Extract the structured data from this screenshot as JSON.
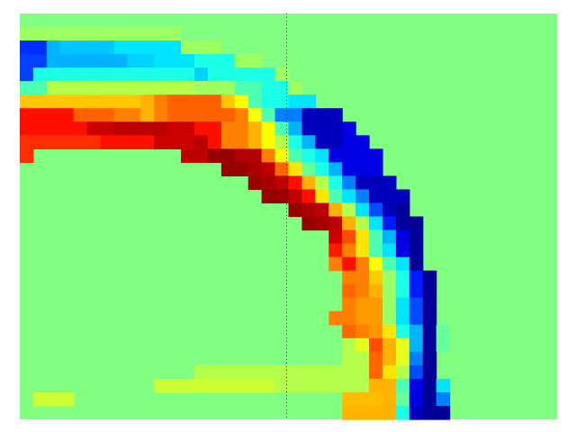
{
  "chart_data": {
    "type": "heatmap",
    "title": "",
    "xlabel": "",
    "ylabel": "",
    "colormap": "jet",
    "value_range": [
      -1,
      1
    ],
    "background_value": 0,
    "grid": false,
    "legend": "none",
    "divider": {
      "orientation": "vertical",
      "column": 20,
      "style": "dotted"
    },
    "grid_size": {
      "rows": 30,
      "cols": 40
    },
    "rows": [
      [
        0,
        0,
        0,
        0,
        0,
        0,
        0,
        0,
        0,
        0,
        0,
        0,
        0,
        0,
        0,
        0,
        0,
        0,
        0,
        0,
        0,
        0,
        0,
        0,
        0,
        0,
        0,
        0,
        0,
        0,
        0,
        0,
        0,
        0,
        0,
        0,
        0,
        0,
        0,
        0
      ],
      [
        0.06,
        0.06,
        0.06,
        0.06,
        0.06,
        0.06,
        0.06,
        0.06,
        0.06,
        0.06,
        0.06,
        0.06,
        0,
        0,
        0,
        0,
        0,
        0,
        0,
        0,
        0,
        0,
        0,
        0,
        0,
        0,
        0,
        0,
        0,
        0,
        0,
        0,
        0,
        0,
        0,
        0,
        0,
        0,
        0,
        0
      ],
      [
        -0.66,
        -0.66,
        -0.4,
        -0.36,
        -0.36,
        -0.36,
        -0.36,
        -0.3,
        -0.3,
        -0.3,
        -0.3,
        -0.3,
        0.06,
        0.06,
        0.06,
        0,
        0,
        0,
        0,
        0,
        0,
        0,
        0,
        0,
        0,
        0,
        0,
        0,
        0,
        0,
        0,
        0,
        0,
        0,
        0,
        0,
        0,
        0,
        0,
        0
      ],
      [
        -0.62,
        -0.62,
        -0.4,
        -0.4,
        -0.4,
        -0.4,
        -0.4,
        -0.4,
        -0.34,
        -0.34,
        -0.3,
        -0.3,
        -0.3,
        -0.2,
        -0.2,
        -0.2,
        0.06,
        0.06,
        0,
        0,
        0,
        0,
        0,
        0,
        0,
        0,
        0,
        0,
        0,
        0,
        0,
        0,
        0,
        0,
        0,
        0,
        0,
        0,
        0,
        0
      ],
      [
        -0.62,
        -0.2,
        -0.2,
        -0.2,
        -0.2,
        -0.2,
        -0.2,
        -0.2,
        -0.2,
        -0.2,
        -0.2,
        -0.2,
        -0.2,
        -0.34,
        -0.2,
        -0.2,
        -0.2,
        -0.2,
        -0.2,
        0.06,
        0,
        0,
        0,
        0,
        0,
        0,
        0,
        0,
        0,
        0,
        0,
        0,
        0,
        0,
        0,
        0,
        0,
        0,
        0,
        0
      ],
      [
        -0.1,
        -0.1,
        0.1,
        0.1,
        0.1,
        0.1,
        0.1,
        0.1,
        0.1,
        0.1,
        0.1,
        0.1,
        0.1,
        0.06,
        0.06,
        0.06,
        -0.1,
        -0.1,
        -0.2,
        -0.2,
        0.06,
        0,
        0,
        0,
        0,
        0,
        0,
        0,
        0,
        0,
        0,
        0,
        0,
        0,
        0,
        0,
        0,
        0,
        0,
        0
      ],
      [
        0.36,
        0.36,
        0.36,
        0.36,
        0.36,
        0.36,
        0.36,
        0.36,
        0.36,
        0.4,
        0.5,
        0.56,
        0.56,
        0.56,
        0.56,
        0.36,
        0.24,
        -0.1,
        -0.2,
        -0.2,
        -0.3,
        -0.3,
        0,
        0,
        0,
        0,
        0,
        0,
        0,
        0,
        0,
        0,
        0,
        0,
        0,
        0,
        0,
        0,
        0,
        0
      ],
      [
        0.72,
        0.72,
        0.72,
        0.72,
        0.56,
        0.56,
        0.56,
        0.5,
        0.5,
        0.4,
        0.5,
        0.56,
        0.56,
        0.56,
        0.56,
        0.56,
        0.5,
        0.24,
        -0.1,
        -0.5,
        -0.5,
        -0.88,
        -0.88,
        -0.88,
        0,
        0,
        0,
        0,
        0,
        0,
        0,
        0,
        0,
        0,
        0,
        0,
        0,
        0,
        0,
        0
      ],
      [
        0.72,
        0.72,
        0.72,
        0.72,
        0.72,
        0.85,
        0.85,
        0.88,
        0.88,
        0.88,
        0.88,
        0.85,
        0.85,
        0.72,
        0.72,
        0.5,
        0.5,
        0.4,
        0.24,
        -0.1,
        -0.4,
        -0.88,
        -0.88,
        -0.88,
        -0.8,
        0,
        0,
        0,
        0,
        0,
        0,
        0,
        0,
        0,
        0,
        0,
        0,
        0,
        0,
        0
      ],
      [
        0.66,
        0.66,
        0.66,
        0.66,
        0.66,
        0.66,
        0.72,
        0.72,
        0.72,
        0.72,
        0.85,
        0.85,
        0.85,
        0.88,
        0.72,
        0.5,
        0.5,
        0.4,
        0.24,
        0.1,
        -0.2,
        -0.4,
        -0.88,
        -0.88,
        -0.8,
        -0.8,
        0,
        0,
        0,
        0,
        0,
        0,
        0,
        0,
        0,
        0,
        0,
        0,
        0,
        0
      ],
      [
        0.66,
        0,
        0,
        0,
        0,
        0,
        0,
        0,
        0,
        0,
        0,
        0,
        0.88,
        0.88,
        0.95,
        0.95,
        0.9,
        0.9,
        0.5,
        0.24,
        -0.1,
        -0.2,
        -0.3,
        -0.8,
        -0.8,
        -0.8,
        -0.8,
        0,
        0,
        0,
        0,
        0,
        0,
        0,
        0,
        0,
        0,
        0,
        0,
        0
      ],
      [
        0,
        0,
        0,
        0,
        0,
        0,
        0,
        0,
        0,
        0,
        0,
        0,
        0,
        0,
        0,
        0.95,
        0.95,
        0.92,
        0.88,
        0.55,
        0.3,
        -0.05,
        -0.2,
        -0.4,
        -0.8,
        -0.8,
        -0.8,
        0,
        0,
        0,
        0,
        0,
        0,
        0,
        0,
        0,
        0,
        0,
        0,
        0
      ],
      [
        0,
        0,
        0,
        0,
        0,
        0,
        0,
        0,
        0,
        0,
        0,
        0,
        0,
        0,
        0,
        0,
        0,
        0.95,
        0.92,
        0.88,
        0.72,
        0.4,
        0.1,
        -0.2,
        -0.5,
        -0.88,
        -0.88,
        -0.88,
        0,
        0,
        0,
        0,
        0,
        0,
        0,
        0,
        0,
        0,
        0,
        0
      ],
      [
        0,
        0,
        0,
        0,
        0,
        0,
        0,
        0,
        0,
        0,
        0,
        0,
        0,
        0,
        0,
        0,
        0,
        0,
        0.95,
        0.95,
        0.88,
        0.72,
        0.3,
        -0.1,
        -0.3,
        -0.5,
        -0.88,
        -0.88,
        -0.88,
        0,
        0,
        0,
        0,
        0,
        0,
        0,
        0,
        0,
        0,
        0
      ],
      [
        0,
        0,
        0,
        0,
        0,
        0,
        0,
        0,
        0,
        0,
        0,
        0,
        0,
        0,
        0,
        0,
        0,
        0,
        0,
        0,
        0.95,
        0.92,
        0.88,
        0.4,
        0.1,
        -0.3,
        -0.6,
        -0.88,
        -0.95,
        0,
        0,
        0,
        0,
        0,
        0,
        0,
        0,
        0,
        0,
        0
      ],
      [
        0,
        0,
        0,
        0,
        0,
        0,
        0,
        0,
        0,
        0,
        0,
        0,
        0,
        0,
        0,
        0,
        0,
        0,
        0,
        0,
        0,
        0.95,
        0.92,
        0.88,
        0.4,
        0.1,
        -0.3,
        -0.7,
        -0.95,
        -0.95,
        0,
        0,
        0,
        0,
        0,
        0,
        0,
        0,
        0,
        0
      ],
      [
        0,
        0,
        0,
        0,
        0,
        0,
        0,
        0,
        0,
        0,
        0,
        0,
        0,
        0,
        0,
        0,
        0,
        0,
        0,
        0,
        0,
        0,
        0,
        0.85,
        0.6,
        0.3,
        -0.1,
        -0.4,
        -0.8,
        -0.95,
        0,
        0,
        0,
        0,
        0,
        0,
        0,
        0,
        0,
        0
      ],
      [
        0,
        0,
        0,
        0,
        0,
        0,
        0,
        0,
        0,
        0,
        0,
        0,
        0,
        0,
        0,
        0,
        0,
        0,
        0,
        0,
        0,
        0,
        0,
        0.7,
        0.5,
        0.3,
        -0.1,
        -0.3,
        -0.8,
        -0.95,
        0,
        0,
        0,
        0,
        0,
        0,
        0,
        0,
        0,
        0
      ],
      [
        0,
        0,
        0,
        0,
        0,
        0,
        0,
        0,
        0,
        0,
        0,
        0,
        0,
        0,
        0,
        0,
        0,
        0,
        0,
        0,
        0,
        0,
        0,
        0.5,
        0.72,
        0.5,
        0.25,
        -0.1,
        -0.3,
        -0.95,
        0,
        0,
        0,
        0,
        0,
        0,
        0,
        0,
        0,
        0
      ],
      [
        0,
        0,
        0,
        0,
        0,
        0,
        0,
        0,
        0,
        0,
        0,
        0,
        0,
        0,
        0,
        0,
        0,
        0,
        0,
        0,
        0,
        0,
        0,
        0,
        0.5,
        0.5,
        0.35,
        0.05,
        -0.2,
        -0.7,
        -0.95,
        0,
        0,
        0,
        0,
        0,
        0,
        0,
        0,
        0
      ],
      [
        0,
        0,
        0,
        0,
        0,
        0,
        0,
        0,
        0,
        0,
        0,
        0,
        0,
        0,
        0,
        0,
        0,
        0,
        0,
        0,
        0,
        0,
        0,
        0,
        0.55,
        0.5,
        0.4,
        0.05,
        -0.2,
        -0.7,
        -0.95,
        0,
        0,
        0,
        0,
        0,
        0,
        0,
        0,
        0
      ],
      [
        0,
        0,
        0,
        0,
        0,
        0,
        0,
        0,
        0,
        0,
        0,
        0,
        0,
        0,
        0,
        0,
        0,
        0,
        0,
        0,
        0,
        0,
        0,
        0,
        0.5,
        0.45,
        0.45,
        0.05,
        -0.3,
        -0.6,
        -0.95,
        0,
        0,
        0,
        0,
        0,
        0,
        0,
        0,
        0
      ],
      [
        0,
        0,
        0,
        0,
        0,
        0,
        0,
        0,
        0,
        0,
        0,
        0,
        0,
        0,
        0,
        0,
        0,
        0,
        0,
        0,
        0,
        0,
        0,
        0.5,
        0.5,
        0.45,
        0.45,
        0.05,
        -0.3,
        -0.6,
        -0.95,
        0,
        0,
        0,
        0,
        0,
        0,
        0,
        0,
        0
      ],
      [
        0,
        0,
        0,
        0,
        0,
        0,
        0,
        0,
        0,
        0,
        0,
        0,
        0,
        0,
        0,
        0,
        0,
        0,
        0,
        0,
        0,
        0,
        0,
        0,
        0.55,
        0.5,
        0.45,
        0.3,
        -0.2,
        -0.4,
        -0.95,
        -0.05,
        0,
        0,
        0,
        0,
        0,
        0,
        0,
        0
      ],
      [
        0,
        0,
        0,
        0,
        0,
        0,
        0,
        0,
        0,
        0,
        0,
        0,
        0,
        0,
        0,
        0,
        0,
        0,
        0,
        0,
        0,
        0,
        0,
        0,
        0.1,
        0.2,
        0.6,
        0.4,
        0.2,
        -0.4,
        -0.95,
        -0.05,
        0,
        0,
        0,
        0,
        0,
        0,
        0,
        0
      ],
      [
        0,
        0,
        0,
        0,
        0,
        0,
        0,
        0,
        0,
        0,
        0,
        0,
        0,
        0,
        0,
        0,
        0,
        0,
        0,
        0,
        0,
        0,
        0,
        0,
        0.1,
        0.1,
        0.55,
        0.4,
        0.2,
        -0.5,
        -0.95,
        0,
        0,
        0,
        0,
        0,
        0,
        0,
        0,
        0
      ],
      [
        0,
        0,
        0,
        0,
        0,
        0,
        0,
        0,
        0,
        0,
        0,
        0,
        0,
        0.1,
        0.1,
        0.1,
        0.1,
        0.1,
        0.1,
        0.1,
        0.1,
        0.1,
        0.1,
        0.1,
        0.1,
        0.1,
        0.55,
        0.3,
        0.1,
        -0.6,
        -0.95,
        0,
        0,
        0,
        0,
        0,
        0,
        0,
        0,
        0
      ],
      [
        0,
        0,
        0,
        0,
        0,
        0,
        0,
        0,
        0,
        0,
        0.15,
        0.15,
        0.15,
        0.15,
        0.15,
        0.15,
        0.15,
        0.15,
        0.15,
        0.1,
        0.1,
        0.1,
        0.1,
        0.1,
        0.1,
        0.1,
        0.4,
        0.4,
        -0.1,
        -0.8,
        -0.95,
        -0.3,
        0,
        0,
        0,
        0,
        0,
        0,
        0,
        0
      ],
      [
        0,
        0.15,
        0.15,
        0.15,
        0,
        0,
        0,
        0,
        0,
        0,
        0,
        0,
        0,
        0,
        0,
        0,
        0,
        0,
        0,
        0,
        0,
        0,
        0,
        0,
        0.38,
        0.38,
        0.38,
        0.4,
        -0.05,
        -0.8,
        -0.95,
        -0.5,
        0,
        0,
        0,
        0,
        0,
        0,
        0,
        0
      ],
      [
        0,
        0,
        0,
        0,
        0,
        0,
        0,
        0,
        0,
        0,
        0,
        0,
        0,
        0,
        0,
        0,
        0,
        0,
        0,
        0,
        0,
        0,
        0,
        0,
        0.4,
        0.4,
        0.4,
        0.4,
        -0.2,
        -0.88,
        -0.95,
        -0.95,
        0,
        0,
        0,
        0,
        0,
        0,
        0,
        0
      ]
    ]
  }
}
